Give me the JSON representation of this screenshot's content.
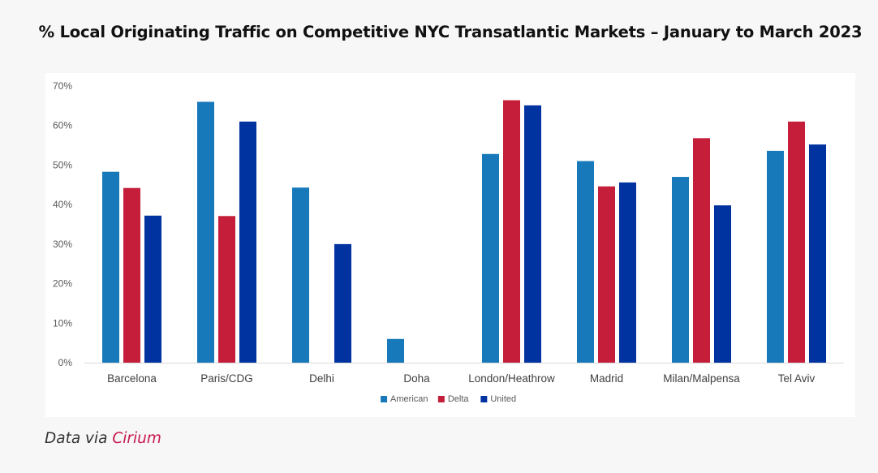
{
  "page": {
    "title": "% Local Originating Traffic on Competitive NYC Transatlantic Markets – January to March 2023",
    "caption_prefix": "Data via",
    "caption_source": "Cirium"
  },
  "chart_data": {
    "type": "bar",
    "title": "% Local Originating Traffic on Competitive NYC Transatlantic Markets – January to March 2023",
    "xlabel": "",
    "ylabel": "",
    "ylim": [
      0,
      70
    ],
    "yticks": [
      0,
      10,
      20,
      30,
      40,
      50,
      60,
      70
    ],
    "ytick_labels": [
      "0%",
      "10%",
      "20%",
      "30%",
      "40%",
      "50%",
      "60%",
      "70%"
    ],
    "grid": false,
    "legend_position": "bottom",
    "categories": [
      "Barcelona",
      "Paris/CDG",
      "Delhi",
      "Doha",
      "London/Heathrow",
      "Madrid",
      "Milan/Malpensa",
      "Tel Aviv"
    ],
    "series": [
      {
        "name": "American",
        "color": "#1779BA",
        "values": [
          48.3,
          66.0,
          44.3,
          6.0,
          52.8,
          51.0,
          47.0,
          53.6
        ]
      },
      {
        "name": "Delta",
        "color": "#C41E3A",
        "values": [
          44.2,
          37.1,
          null,
          null,
          66.4,
          44.6,
          56.8,
          61.0
        ]
      },
      {
        "name": "United",
        "color": "#0033A0",
        "values": [
          37.2,
          61.0,
          30.0,
          null,
          65.1,
          45.6,
          39.8,
          55.2
        ]
      }
    ]
  }
}
